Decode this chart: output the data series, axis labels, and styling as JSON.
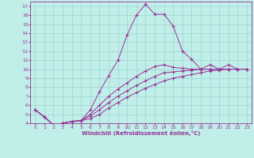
{
  "background_color": "#c0eee8",
  "line_color": "#993399",
  "grid_color": "#99cccc",
  "xlabel": "Windchill (Refroidissement éolien,°C)",
  "xlabel_color": "#993399",
  "tick_color": "#993399",
  "spine_color": "#993399",
  "xlim": [
    -0.5,
    23.5
  ],
  "ylim": [
    4,
    17.5
  ],
  "xticks": [
    0,
    1,
    2,
    3,
    4,
    5,
    6,
    7,
    8,
    9,
    10,
    11,
    12,
    13,
    14,
    15,
    16,
    17,
    18,
    19,
    20,
    21,
    22,
    23
  ],
  "yticks": [
    4,
    5,
    6,
    7,
    8,
    9,
    10,
    11,
    12,
    13,
    14,
    15,
    16,
    17
  ],
  "series": [
    {
      "x": [
        0,
        1,
        2,
        3,
        4,
        5,
        6,
        7,
        8,
        9,
        10,
        11,
        12,
        13,
        14,
        15,
        16,
        17,
        18,
        19,
        20,
        21,
        22,
        23
      ],
      "y": [
        5.5,
        4.7,
        3.8,
        4.0,
        4.2,
        4.3,
        5.5,
        7.5,
        9.3,
        11.0,
        13.8,
        16.0,
        17.2,
        16.1,
        16.1,
        14.8,
        12.0,
        11.1,
        10.0,
        10.5,
        10.0,
        10.5,
        10.0,
        10.0
      ]
    },
    {
      "x": [
        0,
        1,
        2,
        3,
        4,
        5,
        6,
        7,
        8,
        9,
        10,
        11,
        12,
        13,
        14,
        15,
        16,
        17,
        18,
        19,
        20,
        21,
        22,
        23
      ],
      "y": [
        5.5,
        4.7,
        3.8,
        4.0,
        4.2,
        4.3,
        5.0,
        6.0,
        7.0,
        7.8,
        8.5,
        9.2,
        9.8,
        10.3,
        10.5,
        10.2,
        10.1,
        10.0,
        10.0,
        10.0,
        10.0,
        10.0,
        10.0,
        10.0
      ]
    },
    {
      "x": [
        0,
        1,
        2,
        3,
        4,
        5,
        6,
        7,
        8,
        9,
        10,
        11,
        12,
        13,
        14,
        15,
        16,
        17,
        18,
        19,
        20,
        21,
        22,
        23
      ],
      "y": [
        5.5,
        4.7,
        3.8,
        4.0,
        4.2,
        4.3,
        4.8,
        5.5,
        6.3,
        7.0,
        7.6,
        8.2,
        8.7,
        9.2,
        9.6,
        9.7,
        9.8,
        9.9,
        10.0,
        10.0,
        10.0,
        10.0,
        10.0,
        10.0
      ]
    },
    {
      "x": [
        0,
        1,
        2,
        3,
        4,
        5,
        6,
        7,
        8,
        9,
        10,
        11,
        12,
        13,
        14,
        15,
        16,
        17,
        18,
        19,
        20,
        21,
        22,
        23
      ],
      "y": [
        5.5,
        4.7,
        3.8,
        4.0,
        4.2,
        4.3,
        4.5,
        5.0,
        5.7,
        6.3,
        6.9,
        7.4,
        7.9,
        8.3,
        8.7,
        9.0,
        9.2,
        9.4,
        9.6,
        9.8,
        9.9,
        10.0,
        10.0,
        10.0
      ]
    }
  ]
}
